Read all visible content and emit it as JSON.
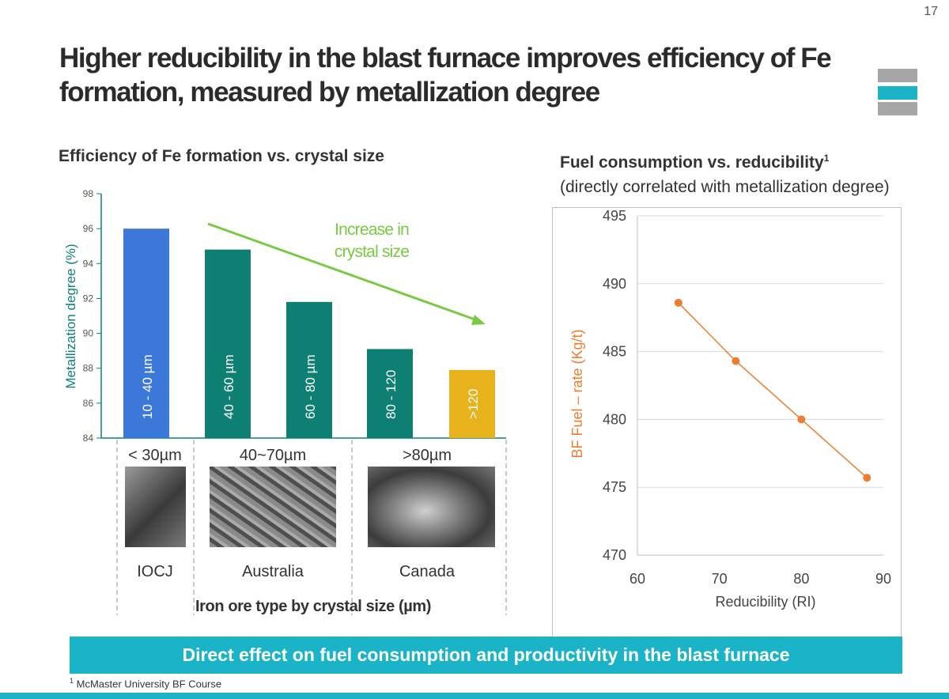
{
  "page_number": "17",
  "slide_title": "Higher reducibility in the blast furnace improves efficiency of Fe formation, measured by metallization degree",
  "logo_colors": [
    "#a6a6a6",
    "#1ab3c8",
    "#a6a6a6"
  ],
  "banner": "Direct effect on fuel consumption and productivity in the blast furnace",
  "footnote": {
    "marker": "1",
    "text": "McMaster University BF Course"
  },
  "chart_data": [
    {
      "type": "bar",
      "title": "Efficiency of Fe formation vs. crystal size",
      "ylabel": "Metallization degree (%)",
      "xlabel": "Iron ore type by crystal size (µm)",
      "ylim": [
        84,
        98
      ],
      "yticks": [
        "84",
        "86",
        "88",
        "90",
        "92",
        "94",
        "96",
        "98"
      ],
      "categories": [
        "10 - 40 µm",
        "40 - 60 µm",
        "60 - 80 µm",
        "80 - 120",
        ">120"
      ],
      "values": [
        96,
        94.8,
        91.8,
        89.1,
        87.9
      ],
      "colors": [
        "#3c78d8",
        "#0e8073",
        "#0e8073",
        "#0e8073",
        "#e8b21c"
      ],
      "groups": [
        {
          "label": "< 30µm",
          "ore": "IOCJ"
        },
        {
          "label": "40~70µm",
          "ore": "Australia"
        },
        {
          "label": ">80µm",
          "ore": "Canada"
        }
      ],
      "annotation": {
        "text": [
          "Increase in",
          "crystal size"
        ],
        "color": "#7ac943"
      }
    },
    {
      "type": "line",
      "title": "Fuel consumption vs. reducibility",
      "title_sup": "1",
      "subtitle": "(directly correlated with metallization degree)",
      "xlabel": "Reducibility (RI)",
      "ylabel": "BF Fuel – rate (Kg/t)",
      "xlim": [
        60,
        90
      ],
      "ylim": [
        470,
        495
      ],
      "xticks": [
        "60",
        "70",
        "80",
        "90"
      ],
      "yticks": [
        "470",
        "475",
        "480",
        "485",
        "490",
        "495"
      ],
      "grid": true,
      "series": [
        {
          "color": "#ed7d31",
          "x": [
            65,
            72,
            80,
            88
          ],
          "y": [
            488.6,
            484.3,
            480.0,
            475.7
          ]
        }
      ]
    }
  ]
}
